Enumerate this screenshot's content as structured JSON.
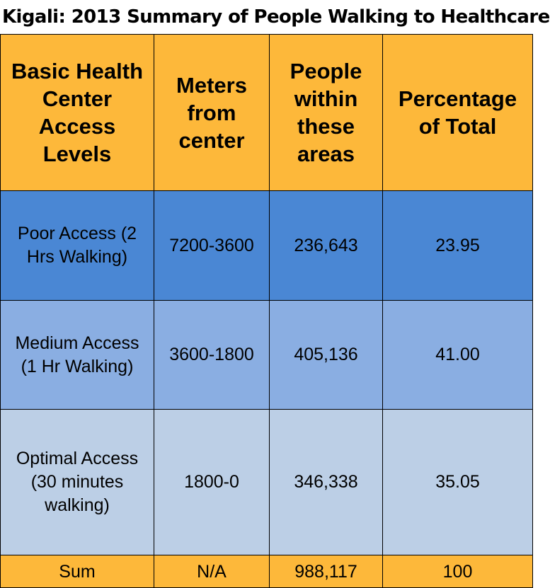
{
  "title": "Kigali: 2013 Summary of People Walking to Healthcare",
  "colors": {
    "header": "#fdb83a",
    "poor": "#4a87d4",
    "medium": "#8aaee2",
    "optimal": "#bccfe6",
    "sum": "#fdb83a"
  },
  "chart_data": {
    "type": "table",
    "columns": [
      "Basic Health Center Access Levels",
      "Meters from center",
      "People within these areas",
      "Percentage of Total"
    ],
    "rows": [
      [
        "Poor Access (2 Hrs Walking)",
        "7200-3600",
        "236,643",
        "23.95"
      ],
      [
        "Medium Access (1 Hr Walking)",
        "3600-1800",
        "405,136",
        "41.00"
      ],
      [
        "Optimal Access (30 minutes walking)",
        "1800-0",
        "346,338",
        "35.05"
      ],
      [
        "Sum",
        "N/A",
        "988,117",
        "100"
      ]
    ]
  }
}
